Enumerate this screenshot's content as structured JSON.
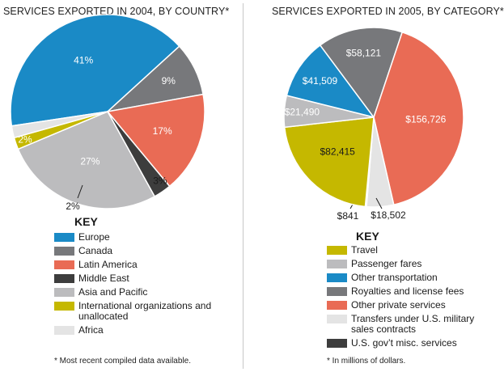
{
  "chart_data": [
    {
      "type": "pie",
      "title": "SERVICES EXPORTED IN 2004, BY COUNTRY*",
      "key_title": "KEY",
      "footnote": "* Most recent compiled data available.",
      "slices": [
        {
          "name": "Europe",
          "value": 41,
          "label": "41%",
          "color": "#1a8ac6"
        },
        {
          "name": "Canada",
          "value": 9,
          "label": "9%",
          "color": "#77787b"
        },
        {
          "name": "Latin America",
          "value": 17,
          "label": "17%",
          "color": "#e96b55"
        },
        {
          "name": "Middle East",
          "value": 3,
          "label": "3%",
          "color": "#3d3d3d"
        },
        {
          "name": "Asia and Pacific",
          "value": 27,
          "label": "27%",
          "color": "#bcbcbe"
        },
        {
          "name": "International organizations and unallocated",
          "value": 2,
          "label": "2%",
          "color": "#c5b800"
        },
        {
          "name": "Africa",
          "value": 2,
          "label": "2%",
          "color": "#e4e4e4"
        }
      ]
    },
    {
      "type": "pie",
      "title": "SERVICES EXPORTED IN 2005, BY CATEGORY*",
      "key_title": "KEY",
      "footnote": "* In millions of dollars.",
      "slices": [
        {
          "name": "Other transportation",
          "value": 41509,
          "label": "$41,509",
          "color": "#1a8ac6"
        },
        {
          "name": "Royalties and license fees",
          "value": 58121,
          "label": "$58,121",
          "color": "#77787b"
        },
        {
          "name": "Other private services",
          "value": 156726,
          "label": "$156,726",
          "color": "#e96b55"
        },
        {
          "name": "Transfers under U.S. military sales contracts",
          "value": 18502,
          "label": "$18,502",
          "color": "#e4e4e4"
        },
        {
          "name": "U.S. gov’t misc. services",
          "value": 841,
          "label": "$841",
          "color": "#3d3d3d"
        },
        {
          "name": "Travel",
          "value": 82415,
          "label": "$82,415",
          "color": "#c5b800"
        },
        {
          "name": "Passenger fares",
          "value": 21490,
          "label": "$21,490",
          "color": "#bcbcbe"
        }
      ],
      "key_order": [
        {
          "name": "Travel",
          "color": "#c5b800"
        },
        {
          "name": "Passenger fares",
          "color": "#bcbcbe"
        },
        {
          "name": "Other transportation",
          "color": "#1a8ac6"
        },
        {
          "name": "Royalties and license fees",
          "color": "#77787b"
        },
        {
          "name": "Other private services",
          "color": "#e96b55"
        },
        {
          "name": "Transfers under U.S. military sales contracts",
          "color": "#e4e4e4"
        },
        {
          "name": "U.S. gov’t misc. services",
          "color": "#3d3d3d"
        }
      ]
    }
  ]
}
